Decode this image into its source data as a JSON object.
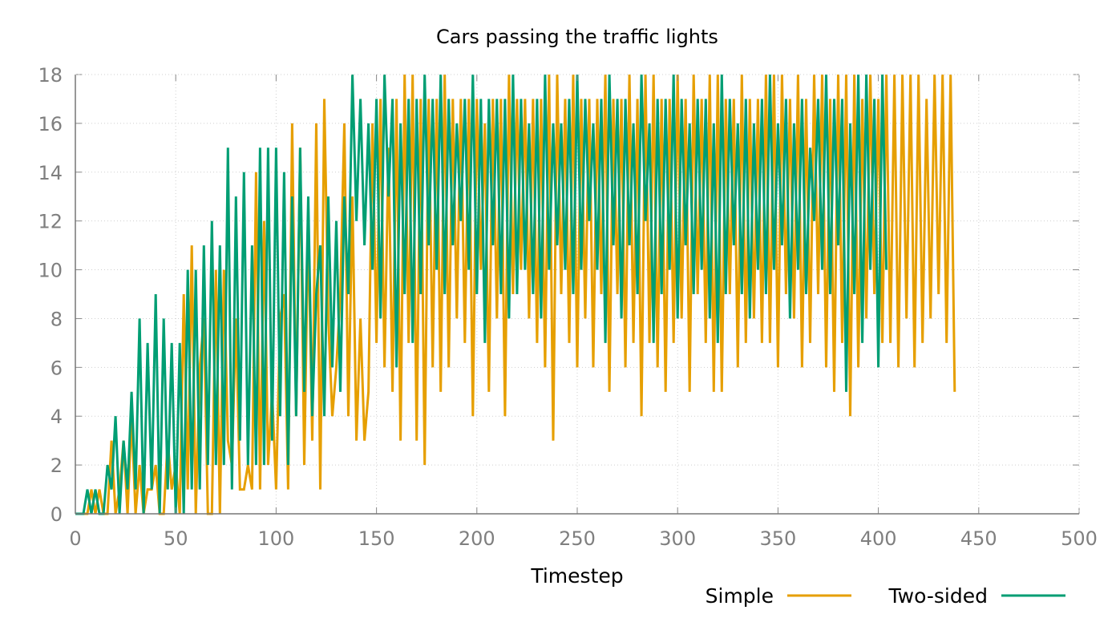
{
  "chart_data": {
    "type": "line",
    "title": "Cars passing the traffic lights",
    "xlabel": "Timestep",
    "ylabel": "",
    "xlim": [
      0,
      500
    ],
    "ylim": [
      0,
      18
    ],
    "xticks": [
      0,
      50,
      100,
      150,
      200,
      250,
      300,
      350,
      400,
      450,
      500
    ],
    "yticks": [
      0,
      2,
      4,
      6,
      8,
      10,
      12,
      14,
      16,
      18
    ],
    "grid": true,
    "legend_position": "bottom-right",
    "sample_step": 2,
    "series": [
      {
        "name": "Simple",
        "color": "#e69f00",
        "values": [
          0,
          0,
          0,
          0,
          1,
          0,
          1,
          0,
          0,
          3,
          0,
          1,
          3,
          0,
          4,
          0,
          2,
          0,
          1,
          1,
          2,
          0,
          0,
          3,
          1,
          2,
          0,
          9,
          1,
          11,
          0,
          6,
          8,
          0,
          0,
          10,
          0,
          10,
          3,
          2,
          8,
          1,
          1,
          2,
          1,
          14,
          1,
          12,
          2,
          5,
          1,
          8,
          9,
          1,
          16,
          4,
          15,
          2,
          12,
          3,
          16,
          1,
          17,
          8,
          4,
          6,
          9,
          16,
          4,
          13,
          3,
          8,
          3,
          5,
          16,
          7,
          17,
          6,
          15,
          5,
          17,
          3,
          18,
          7,
          18,
          3,
          17,
          2,
          17,
          6,
          17,
          5,
          18,
          6,
          17,
          8,
          17,
          7,
          17,
          4,
          17,
          10,
          16,
          5,
          17,
          8,
          17,
          4,
          18,
          9,
          17,
          10,
          17,
          8,
          17,
          7,
          17,
          6,
          18,
          3,
          18,
          9,
          17,
          7,
          18,
          6,
          17,
          8,
          17,
          6,
          17,
          9,
          18,
          5,
          17,
          9,
          17,
          6,
          18,
          7,
          17,
          4,
          18,
          7,
          18,
          6,
          17,
          5,
          17,
          7,
          18,
          8,
          17,
          5,
          18,
          9,
          17,
          7,
          18,
          5,
          18,
          5,
          17,
          9,
          17,
          6,
          18,
          7,
          17,
          8,
          17,
          7,
          18,
          7,
          18,
          6,
          18,
          9,
          17,
          8,
          18,
          6,
          17,
          7,
          18,
          9,
          18,
          6,
          17,
          5,
          18,
          7,
          18,
          4,
          18,
          6,
          17,
          8,
          18,
          9,
          17,
          7,
          18,
          7,
          18,
          6,
          18,
          8,
          18,
          6,
          18,
          7,
          17,
          8,
          18,
          9,
          18,
          7,
          18,
          5
        ],
        "sample_values": []
      },
      {
        "name": "Two-sided",
        "color": "#009e73",
        "values": [
          0,
          0,
          0,
          1,
          0,
          1,
          0,
          0,
          2,
          1,
          4,
          0,
          3,
          1,
          5,
          1,
          8,
          0,
          7,
          1,
          9,
          0,
          8,
          1,
          7,
          0,
          7,
          0,
          10,
          1,
          10,
          1,
          11,
          2,
          12,
          2,
          11,
          2,
          15,
          1,
          13,
          3,
          14,
          2,
          11,
          2,
          15,
          2,
          15,
          3,
          15,
          4,
          14,
          2,
          13,
          4,
          15,
          5,
          13,
          4,
          9,
          11,
          4,
          13,
          6,
          12,
          5,
          13,
          9,
          18,
          12,
          17,
          11,
          16,
          10,
          17,
          8,
          18,
          13,
          17,
          6,
          16,
          9,
          17,
          7,
          17,
          9,
          18,
          11,
          17,
          10,
          18,
          9,
          17,
          11,
          16,
          12,
          17,
          10,
          18,
          9,
          17,
          7,
          17,
          11,
          17,
          9,
          17,
          8,
          18,
          9,
          17,
          10,
          16,
          9,
          17,
          8,
          18,
          10,
          16,
          11,
          16,
          10,
          17,
          9,
          18,
          10,
          17,
          12,
          16,
          10,
          17,
          7,
          18,
          11,
          17,
          8,
          17,
          11,
          16,
          9,
          18,
          12,
          16,
          7,
          17,
          9,
          17,
          10,
          18,
          8,
          17,
          11,
          16,
          9,
          17,
          10,
          17,
          8,
          16,
          7,
          18,
          9,
          17,
          11,
          16,
          9,
          17,
          8,
          16,
          10,
          17,
          9,
          18,
          10,
          16,
          11,
          17,
          8,
          16,
          10,
          17,
          9,
          15,
          12,
          17,
          10,
          18,
          9,
          17,
          11,
          17,
          5,
          16,
          9,
          18,
          7,
          18,
          10,
          17,
          6,
          18,
          10
        ]
      }
    ]
  },
  "legend": {
    "simple_label": "Simple",
    "twosided_label": "Two-sided"
  }
}
